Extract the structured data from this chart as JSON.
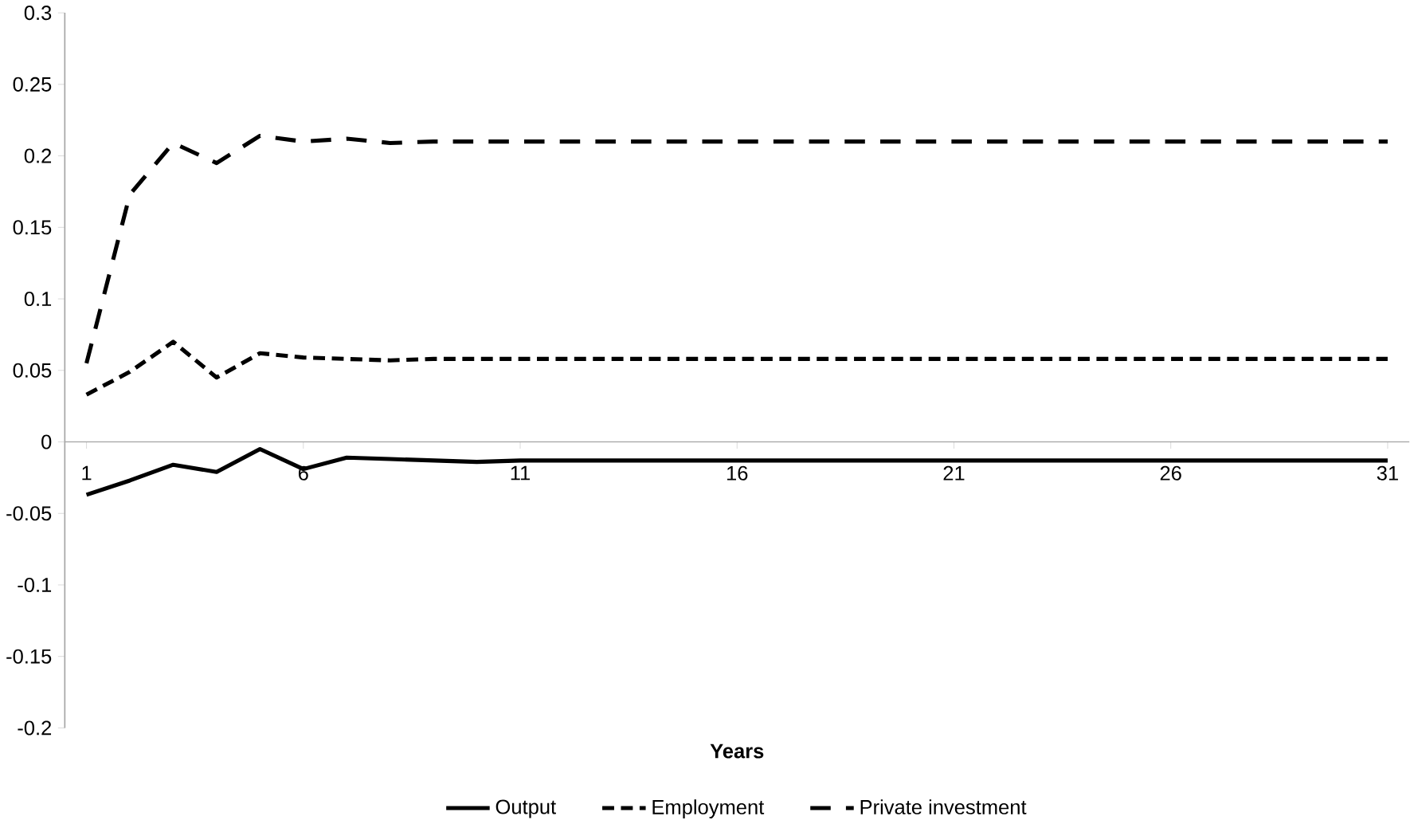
{
  "chart_data": {
    "type": "line",
    "xlabel": "Years",
    "x": [
      1,
      2,
      3,
      4,
      5,
      6,
      7,
      8,
      9,
      10,
      11,
      12,
      13,
      14,
      15,
      16,
      17,
      18,
      19,
      20,
      21,
      22,
      23,
      24,
      25,
      26,
      27,
      28,
      29,
      30,
      31
    ],
    "xlim": [
      0.5,
      31.5
    ],
    "xticks": [
      1,
      6,
      11,
      16,
      21,
      26,
      31
    ],
    "ylim": [
      -0.2,
      0.3
    ],
    "yticks": [
      -0.2,
      -0.15,
      -0.1,
      -0.05,
      0,
      0.05,
      0.1,
      0.15,
      0.2,
      0.25,
      0.3
    ],
    "grid": false,
    "legend": "bottom",
    "marker": "none",
    "series": [
      {
        "name": "Output",
        "color": "#000000",
        "line_style": "solid",
        "values": [
          -0.037,
          -0.027,
          -0.016,
          -0.021,
          -0.005,
          -0.019,
          -0.011,
          -0.012,
          -0.013,
          -0.014,
          -0.013,
          -0.013,
          -0.013,
          -0.013,
          -0.013,
          -0.013,
          -0.013,
          -0.013,
          -0.013,
          -0.013,
          -0.013,
          -0.013,
          -0.013,
          -0.013,
          -0.013,
          -0.013,
          -0.013,
          -0.013,
          -0.013,
          -0.013,
          -0.013
        ]
      },
      {
        "name": "Employment",
        "color": "#000000",
        "line_style": "dashed",
        "values": [
          0.033,
          0.049,
          0.07,
          0.045,
          0.062,
          0.059,
          0.058,
          0.057,
          0.058,
          0.058,
          0.058,
          0.058,
          0.058,
          0.058,
          0.058,
          0.058,
          0.058,
          0.058,
          0.058,
          0.058,
          0.058,
          0.058,
          0.058,
          0.058,
          0.058,
          0.058,
          0.058,
          0.058,
          0.058,
          0.058,
          0.058
        ]
      },
      {
        "name": "Private investment",
        "color": "#000000",
        "line_style": "longdashed",
        "values": [
          0.055,
          0.173,
          0.209,
          0.195,
          0.214,
          0.21,
          0.212,
          0.209,
          0.21,
          0.21,
          0.21,
          0.21,
          0.21,
          0.21,
          0.21,
          0.21,
          0.21,
          0.21,
          0.21,
          0.21,
          0.21,
          0.21,
          0.21,
          0.21,
          0.21,
          0.21,
          0.21,
          0.21,
          0.21,
          0.21,
          0.21
        ]
      }
    ]
  }
}
